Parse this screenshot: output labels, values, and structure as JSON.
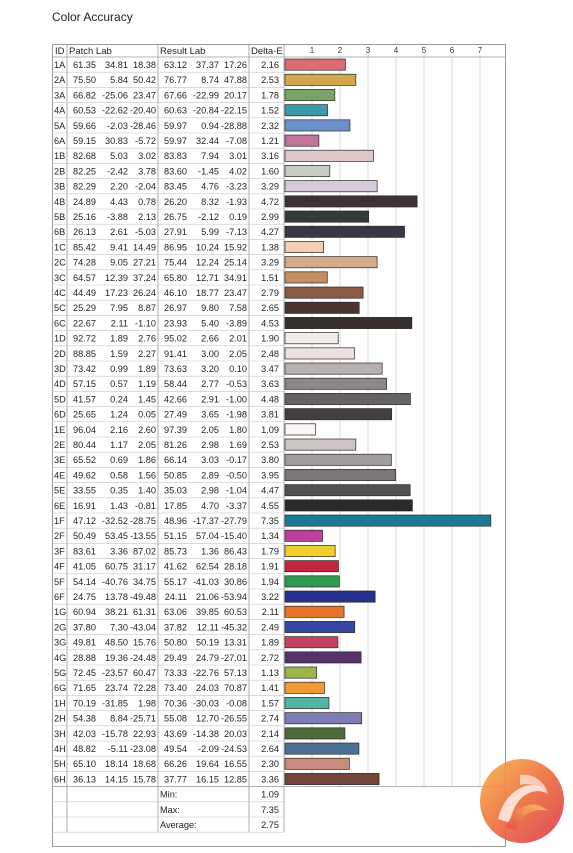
{
  "page": {
    "title": "Color Accuracy"
  },
  "headers": {
    "id": "ID",
    "patch": "Patch Lab",
    "result": "Result Lab",
    "delta": "Delta-E"
  },
  "chart_data": {
    "type": "bar",
    "orientation": "horizontal",
    "xlim": [
      0,
      7.6
    ],
    "ticks": [
      1,
      2,
      3,
      4,
      5,
      6,
      7
    ],
    "grid": true,
    "rows": [
      {
        "id": "1A",
        "patch": [
          "61.35",
          "34.81",
          "18.38"
        ],
        "result": [
          "63.12",
          "37.37",
          "17.26"
        ],
        "delta": "2.16",
        "color": "#dc6b72"
      },
      {
        "id": "2A",
        "patch": [
          "75.50",
          "5.84",
          "50.42"
        ],
        "result": [
          "76.77",
          "8.74",
          "47.88"
        ],
        "delta": "2.53",
        "color": "#d4a64d"
      },
      {
        "id": "3A",
        "patch": [
          "66.82",
          "-25.06",
          "23.47"
        ],
        "result": [
          "67.66",
          "-22.99",
          "20.17"
        ],
        "delta": "1.78",
        "color": "#7aa467"
      },
      {
        "id": "4A",
        "patch": [
          "60.53",
          "-22.62",
          "-20.40"
        ],
        "result": [
          "60.63",
          "-20.84",
          "-22.15"
        ],
        "delta": "1.52",
        "color": "#3d9aab"
      },
      {
        "id": "5A",
        "patch": [
          "59.66",
          "-2.03",
          "-28.46"
        ],
        "result": [
          "59.97",
          "0.94",
          "-28.88"
        ],
        "delta": "2.32",
        "color": "#6d8fcc"
      },
      {
        "id": "6A",
        "patch": [
          "59.15",
          "30.83",
          "-5.72"
        ],
        "result": [
          "59.97",
          "32.44",
          "-7.08"
        ],
        "delta": "1.21",
        "color": "#c2739b"
      },
      {
        "id": "1B",
        "patch": [
          "82.68",
          "5.03",
          "3.02"
        ],
        "result": [
          "83.83",
          "7.94",
          "3.01"
        ],
        "delta": "3.16",
        "color": "#dfc6c8"
      },
      {
        "id": "2B",
        "patch": [
          "82.25",
          "-2.42",
          "3.78"
        ],
        "result": [
          "83.60",
          "-1.45",
          "4.02"
        ],
        "delta": "1.60",
        "color": "#c7cdc3"
      },
      {
        "id": "3B",
        "patch": [
          "82.29",
          "2.20",
          "-2.04"
        ],
        "result": [
          "83.45",
          "4.76",
          "-3.23"
        ],
        "delta": "3.29",
        "color": "#d4cbd8"
      },
      {
        "id": "4B",
        "patch": [
          "24.89",
          "4.43",
          "0.78"
        ],
        "result": [
          "26.20",
          "8.32",
          "-1.93"
        ],
        "delta": "4.72",
        "color": "#3d3236"
      },
      {
        "id": "5B",
        "patch": [
          "25.16",
          "-3.88",
          "2.13"
        ],
        "result": [
          "26.75",
          "-2.12",
          "0.19"
        ],
        "delta": "2.99",
        "color": "#333b37"
      },
      {
        "id": "6B",
        "patch": [
          "26.13",
          "2.61",
          "-5.03"
        ],
        "result": [
          "27.91",
          "5.99",
          "-7.13"
        ],
        "delta": "4.27",
        "color": "#3b3644"
      },
      {
        "id": "1C",
        "patch": [
          "85.42",
          "9.41",
          "14.49"
        ],
        "result": [
          "86.95",
          "10.24",
          "15.92"
        ],
        "delta": "1.38",
        "color": "#f2cfb4"
      },
      {
        "id": "2C",
        "patch": [
          "74.28",
          "9.05",
          "27.21"
        ],
        "result": [
          "75.44",
          "12.24",
          "25.14"
        ],
        "delta": "3.29",
        "color": "#d7ab88"
      },
      {
        "id": "3C",
        "patch": [
          "64.57",
          "12.39",
          "37.24"
        ],
        "result": [
          "65.80",
          "12.71",
          "34.91"
        ],
        "delta": "1.51",
        "color": "#c28e62"
      },
      {
        "id": "4C",
        "patch": [
          "44.49",
          "17.23",
          "26.24"
        ],
        "result": [
          "46.10",
          "18.77",
          "23.47"
        ],
        "delta": "2.79",
        "color": "#8a5a43"
      },
      {
        "id": "5C",
        "patch": [
          "25.29",
          "7.95",
          "8.87"
        ],
        "result": [
          "26.97",
          "9.80",
          "7.58"
        ],
        "delta": "2.65",
        "color": "#4a3430"
      },
      {
        "id": "6C",
        "patch": [
          "22.67",
          "2.11",
          "-1.10"
        ],
        "result": [
          "23.93",
          "5.40",
          "-3.89"
        ],
        "delta": "4.53",
        "color": "#36302f"
      },
      {
        "id": "1D",
        "patch": [
          "92.72",
          "1.89",
          "2.76"
        ],
        "result": [
          "95.02",
          "2.66",
          "2.01"
        ],
        "delta": "1.90",
        "color": "#f2ebe9"
      },
      {
        "id": "2D",
        "patch": [
          "88.85",
          "1.59",
          "2.27"
        ],
        "result": [
          "91.41",
          "3.00",
          "2.05"
        ],
        "delta": "2.48",
        "color": "#ebe1df"
      },
      {
        "id": "3D",
        "patch": [
          "73.42",
          "0.99",
          "1.89"
        ],
        "result": [
          "73.63",
          "3.20",
          "0.10"
        ],
        "delta": "3.47",
        "color": "#b7b0af"
      },
      {
        "id": "4D",
        "patch": [
          "57.15",
          "0.57",
          "1.19"
        ],
        "result": [
          "58.44",
          "2.77",
          "-0.53"
        ],
        "delta": "3.63",
        "color": "#8d8888"
      },
      {
        "id": "5D",
        "patch": [
          "41.57",
          "0.24",
          "1.45"
        ],
        "result": [
          "42.66",
          "2.91",
          "-1.00"
        ],
        "delta": "4.48",
        "color": "#676363"
      },
      {
        "id": "6D",
        "patch": [
          "25.65",
          "1.24",
          "0.05"
        ],
        "result": [
          "27.49",
          "3.65",
          "-1.98"
        ],
        "delta": "3.81",
        "color": "#423e3f"
      },
      {
        "id": "1E",
        "patch": [
          "96.04",
          "2.16",
          "2.60"
        ],
        "result": [
          "97.39",
          "2.05",
          "1.80"
        ],
        "delta": "1.09",
        "color": "#fcf6f5"
      },
      {
        "id": "2E",
        "patch": [
          "80.44",
          "1.17",
          "2.05"
        ],
        "result": [
          "81.26",
          "2.98",
          "1.69"
        ],
        "delta": "2.53",
        "color": "#cac4c3"
      },
      {
        "id": "3E",
        "patch": [
          "65.52",
          "0.69",
          "1.86"
        ],
        "result": [
          "66.14",
          "3.03",
          "-0.17"
        ],
        "delta": "3.80",
        "color": "#a29d9d"
      },
      {
        "id": "4E",
        "patch": [
          "49.62",
          "0.58",
          "1.56"
        ],
        "result": [
          "50.85",
          "2.89",
          "-0.50"
        ],
        "delta": "3.95",
        "color": "#7b7777"
      },
      {
        "id": "5E",
        "patch": [
          "33.55",
          "0.35",
          "1.40"
        ],
        "result": [
          "35.03",
          "2.98",
          "-1.04"
        ],
        "delta": "4.47",
        "color": "#535050"
      },
      {
        "id": "6E",
        "patch": [
          "16.91",
          "1.43",
          "-0.81"
        ],
        "result": [
          "17.85",
          "4.70",
          "-3.37"
        ],
        "delta": "4.55",
        "color": "#2c292b"
      },
      {
        "id": "1F",
        "patch": [
          "47.12",
          "-32.52",
          "-28.75"
        ],
        "result": [
          "48.96",
          "-17.37",
          "-27.79"
        ],
        "delta": "7.35",
        "color": "#1b7a93"
      },
      {
        "id": "2F",
        "patch": [
          "50.49",
          "53.45",
          "-13.55"
        ],
        "result": [
          "51.15",
          "57.04",
          "-15.40"
        ],
        "delta": "1.34",
        "color": "#c03e9d"
      },
      {
        "id": "3F",
        "patch": [
          "83.61",
          "3.36",
          "87.02"
        ],
        "result": [
          "85.73",
          "1.36",
          "86.43"
        ],
        "delta": "1.79",
        "color": "#f0cf2c"
      },
      {
        "id": "4F",
        "patch": [
          "41.05",
          "60.75",
          "31.17"
        ],
        "result": [
          "41.62",
          "62.54",
          "28.18"
        ],
        "delta": "1.91",
        "color": "#c6263d"
      },
      {
        "id": "5F",
        "patch": [
          "54.14",
          "-40.76",
          "34.75"
        ],
        "result": [
          "55.17",
          "-41.03",
          "30.86"
        ],
        "delta": "1.94",
        "color": "#2f9a4f"
      },
      {
        "id": "6F",
        "patch": [
          "24.75",
          "13.78",
          "-49.48"
        ],
        "result": [
          "24.11",
          "21.06",
          "-53.94"
        ],
        "delta": "3.22",
        "color": "#26318e"
      },
      {
        "id": "1G",
        "patch": [
          "60.94",
          "38.21",
          "61.31"
        ],
        "result": [
          "63.06",
          "39.85",
          "60.53"
        ],
        "delta": "2.11",
        "color": "#e5742a"
      },
      {
        "id": "2G",
        "patch": [
          "37.80",
          "7.30",
          "-43.04"
        ],
        "result": [
          "37.82",
          "12.11",
          "-45.32"
        ],
        "delta": "2.49",
        "color": "#3846a4"
      },
      {
        "id": "3G",
        "patch": [
          "49.81",
          "48.50",
          "15.76"
        ],
        "result": [
          "50.80",
          "50.19",
          "13.31"
        ],
        "delta": "1.89",
        "color": "#c44360"
      },
      {
        "id": "4G",
        "patch": [
          "28.88",
          "19.36",
          "-24.48"
        ],
        "result": [
          "29.49",
          "24.79",
          "-27.01"
        ],
        "delta": "2.72",
        "color": "#563268"
      },
      {
        "id": "5G",
        "patch": [
          "72.45",
          "-23.57",
          "60.47"
        ],
        "result": [
          "73.33",
          "-22.76",
          "57.13"
        ],
        "delta": "1.13",
        "color": "#9ab548"
      },
      {
        "id": "6G",
        "patch": [
          "71.65",
          "23.74",
          "72.28"
        ],
        "result": [
          "73.40",
          "24.03",
          "70.87"
        ],
        "delta": "1.41",
        "color": "#f19a33"
      },
      {
        "id": "1H",
        "patch": [
          "70.19",
          "-31.85",
          "1.98"
        ],
        "result": [
          "70.36",
          "-30.03",
          "-0.08"
        ],
        "delta": "1.57",
        "color": "#54b5a4"
      },
      {
        "id": "2H",
        "patch": [
          "54.38",
          "8.84",
          "-25.71"
        ],
        "result": [
          "55.08",
          "12.70",
          "-26.55"
        ],
        "delta": "2.74",
        "color": "#7e7cb6"
      },
      {
        "id": "3H",
        "patch": [
          "42.03",
          "-15.78",
          "22.93"
        ],
        "result": [
          "43.69",
          "-14.38",
          "20.03"
        ],
        "delta": "2.14",
        "color": "#4f6a3d"
      },
      {
        "id": "4H",
        "patch": [
          "48.82",
          "-5.11",
          "-23.08"
        ],
        "result": [
          "49.54",
          "-2.09",
          "-24.53"
        ],
        "delta": "2.64",
        "color": "#4a7296"
      },
      {
        "id": "5H",
        "patch": [
          "65.10",
          "18.14",
          "18.68"
        ],
        "result": [
          "66.26",
          "19.64",
          "16.55"
        ],
        "delta": "2.30",
        "color": "#c98a7b"
      },
      {
        "id": "6H",
        "patch": [
          "36.13",
          "14.15",
          "15.78"
        ],
        "result": [
          "37.77",
          "16.15",
          "12.85"
        ],
        "delta": "3.36",
        "color": "#72463a"
      }
    ],
    "summary": [
      {
        "label": "Min:",
        "value": "1.09"
      },
      {
        "label": "Max:",
        "value": "7.35"
      },
      {
        "label": "Average:",
        "value": "2.75"
      }
    ]
  }
}
